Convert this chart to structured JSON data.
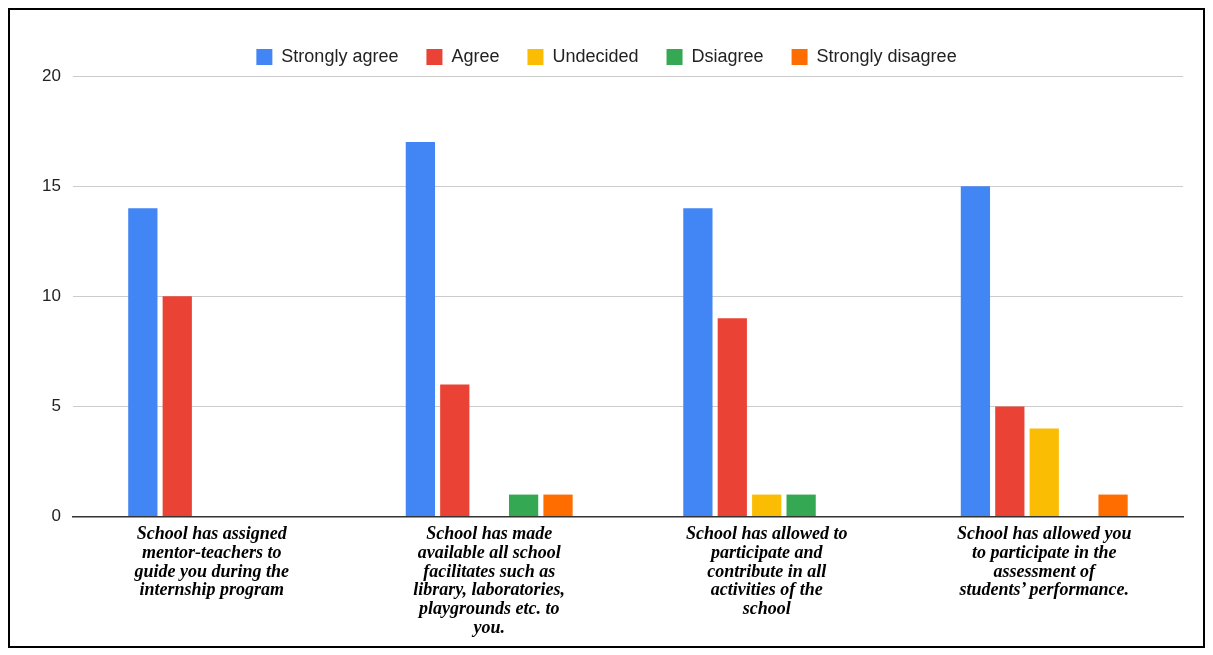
{
  "chart_data": {
    "type": "bar",
    "categories": [
      "School has assigned mentor-teachers to guide you during the internship program",
      "School has made available all school facilitates such as library, laboratories, playgrounds etc. to you.",
      "School has allowed to participate and contribute in all activities of the school",
      "School has allowed you to participate in the assessment of students’ performance."
    ],
    "series": [
      {
        "name": "Strongly agree",
        "color": "#4285f4",
        "values": [
          14,
          17,
          14,
          15
        ]
      },
      {
        "name": "Agree",
        "color": "#ea4335",
        "values": [
          10,
          6,
          9,
          5
        ]
      },
      {
        "name": "Undecided",
        "color": "#fbbc04",
        "values": [
          0,
          0,
          1,
          4
        ]
      },
      {
        "name": "Dsiagree",
        "color": "#34a853",
        "values": [
          0,
          1,
          1,
          0
        ]
      },
      {
        "name": "Strongly disagree",
        "color": "#ff6d01",
        "values": [
          0,
          1,
          0,
          1
        ]
      }
    ],
    "ylim": [
      0,
      20
    ],
    "yticks": [
      0,
      5,
      10,
      15,
      20
    ],
    "grid": "y",
    "legend": "top"
  }
}
